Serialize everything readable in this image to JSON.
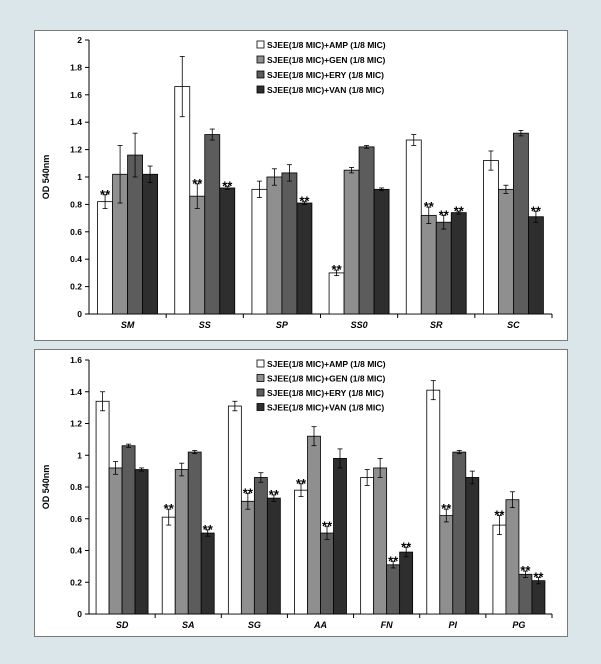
{
  "colors": {
    "page_bg": "#dbe6ea",
    "series": [
      "#ffffff",
      "#8f8f8f",
      "#5c5c5c",
      "#2e2e2e"
    ]
  },
  "chart_data": [
    {
      "type": "bar",
      "ylabel": "OD 540nm",
      "ylim": [
        0,
        2
      ],
      "yticks": [
        "0",
        "0.2",
        "0.4",
        "0.6",
        "0.8",
        "1",
        "1.2",
        "1.4",
        "1.6",
        "1.8",
        "2"
      ],
      "grid": false,
      "legend_position": "top-right",
      "categories": [
        "SM",
        "SS",
        "SP",
        "SS0",
        "SR",
        "SC"
      ],
      "series": [
        {
          "name": "SJEE(1/8 MIC)+AMP (1/8 MIC)",
          "values": [
            0.82,
            1.66,
            0.91,
            0.3,
            1.27,
            1.12
          ],
          "errors": [
            0.05,
            0.22,
            0.06,
            0.02,
            0.04,
            0.07
          ],
          "stars": [
            true,
            false,
            false,
            true,
            false,
            false
          ]
        },
        {
          "name": "SJEE(1/8 MIC)+GEN (1/8 MIC)",
          "values": [
            1.02,
            0.86,
            1.0,
            1.05,
            0.72,
            0.91
          ],
          "errors": [
            0.21,
            0.09,
            0.06,
            0.02,
            0.06,
            0.03
          ],
          "stars": [
            false,
            true,
            false,
            false,
            true,
            false
          ]
        },
        {
          "name": "SJEE(1/8 MIC)+ERY (1/8 MIC)",
          "values": [
            1.16,
            1.31,
            1.03,
            1.22,
            0.67,
            1.32
          ],
          "errors": [
            0.16,
            0.04,
            0.06,
            0.01,
            0.05,
            0.02
          ],
          "stars": [
            false,
            false,
            false,
            false,
            true,
            false
          ]
        },
        {
          "name": "SJEE(1/8 MIC)+VAN (1/8 MIC)",
          "values": [
            1.02,
            0.92,
            0.81,
            0.91,
            0.74,
            0.71
          ],
          "errors": [
            0.06,
            0.01,
            0.01,
            0.01,
            0.01,
            0.04
          ],
          "stars": [
            false,
            true,
            true,
            false,
            true,
            true
          ]
        }
      ],
      "star_text": "**"
    },
    {
      "type": "bar",
      "ylabel": "OD 540nm",
      "ylim": [
        0,
        1.6
      ],
      "yticks": [
        "0",
        "0.2",
        "0.4",
        "0.6",
        "0.8",
        "1",
        "1.2",
        "1.4",
        "1.6"
      ],
      "grid": false,
      "legend_position": "top-right",
      "categories": [
        "SD",
        "SA",
        "SG",
        "AA",
        "FN",
        "PI",
        "PG"
      ],
      "series": [
        {
          "name": "SJEE(1/8 MIC)+AMP (1/8 MIC)",
          "values": [
            1.34,
            0.61,
            1.31,
            0.78,
            0.86,
            1.41,
            0.56
          ],
          "errors": [
            0.06,
            0.05,
            0.03,
            0.04,
            0.05,
            0.06,
            0.06
          ],
          "stars": [
            false,
            true,
            false,
            true,
            false,
            false,
            true
          ]
        },
        {
          "name": "SJEE(1/8 MIC)+GEN (1/8 MIC)",
          "values": [
            0.92,
            0.91,
            0.71,
            1.12,
            0.92,
            0.62,
            0.72
          ],
          "errors": [
            0.04,
            0.04,
            0.05,
            0.06,
            0.06,
            0.04,
            0.05
          ],
          "stars": [
            false,
            false,
            true,
            false,
            false,
            true,
            false
          ]
        },
        {
          "name": "SJEE(1/8 MIC)+ERY (1/8 MIC)",
          "values": [
            1.06,
            1.02,
            0.86,
            0.51,
            0.31,
            1.02,
            0.25
          ],
          "errors": [
            0.01,
            0.01,
            0.03,
            0.04,
            0.02,
            0.01,
            0.02
          ],
          "stars": [
            false,
            false,
            false,
            true,
            true,
            false,
            true
          ]
        },
        {
          "name": "SJEE(1/8 MIC)+VAN (1/8 MIC)",
          "values": [
            0.91,
            0.51,
            0.73,
            0.98,
            0.39,
            0.86,
            0.21
          ],
          "errors": [
            0.01,
            0.02,
            0.02,
            0.06,
            0.03,
            0.04,
            0.02
          ],
          "stars": [
            false,
            true,
            true,
            false,
            true,
            false,
            true
          ]
        }
      ],
      "star_text": "**"
    }
  ]
}
